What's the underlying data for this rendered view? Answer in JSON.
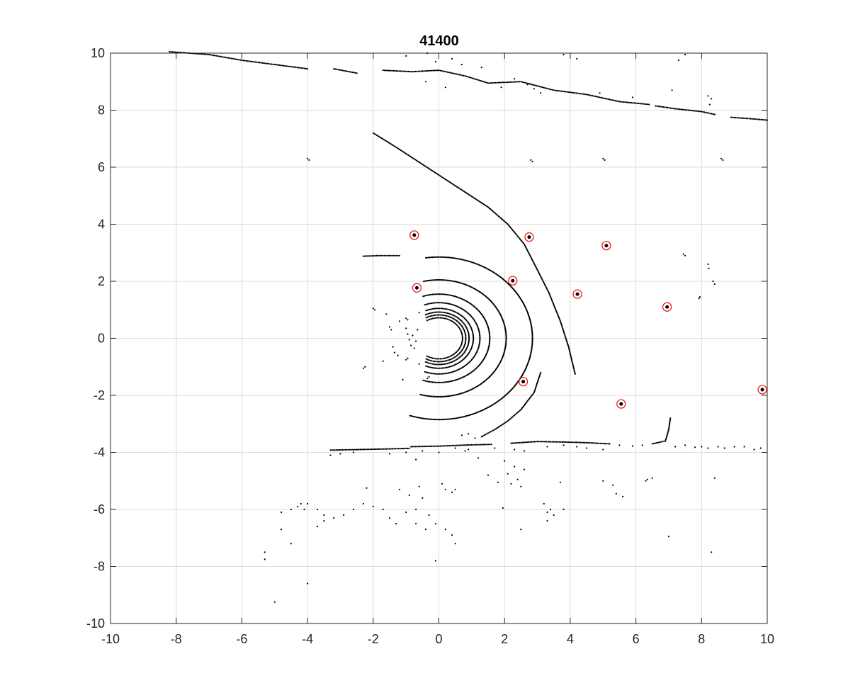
{
  "chart_data": {
    "type": "scatter",
    "title": "41400",
    "xlabel": "",
    "ylabel": "",
    "xlim": [
      -10,
      10
    ],
    "ylim": [
      -10,
      10
    ],
    "xticks": [
      -10,
      -8,
      -6,
      -4,
      -2,
      0,
      2,
      4,
      6,
      8,
      10
    ],
    "yticks": [
      -10,
      -8,
      -6,
      -4,
      -2,
      0,
      2,
      4,
      6,
      8,
      10
    ],
    "xtick_labels": [
      "-10",
      "-8",
      "-6",
      "-4",
      "-2",
      "0",
      "2",
      "4",
      "6",
      "8",
      "10"
    ],
    "ytick_labels": [
      "-10",
      "-8",
      "-6",
      "-4",
      "-2",
      "0",
      "2",
      "4",
      "6",
      "8",
      "10"
    ],
    "grid": true,
    "point_color": "#000000",
    "marker_color": "#ff0000",
    "arcs": [
      {
        "r": 0.72,
        "start": -120,
        "end": 120
      },
      {
        "r": 0.82,
        "start": -118,
        "end": 118
      },
      {
        "r": 0.92,
        "start": -116,
        "end": 116
      },
      {
        "r": 1.05,
        "start": -112,
        "end": 112
      },
      {
        "r": 1.25,
        "start": -110,
        "end": 110
      },
      {
        "r": 1.55,
        "start": -108,
        "end": 108
      },
      {
        "r": 2.05,
        "start": -106,
        "end": 103
      },
      {
        "r": 2.85,
        "start": -108,
        "end": 98
      }
    ],
    "polylines": [
      [
        [
          -2.0,
          7.2
        ],
        [
          -1.3,
          6.7
        ],
        [
          -0.5,
          6.1
        ],
        [
          0.3,
          5.5
        ],
        [
          0.9,
          5.05
        ],
        [
          1.5,
          4.6
        ],
        [
          2.1,
          4.0
        ],
        [
          2.6,
          3.3
        ],
        [
          3.0,
          2.4
        ],
        [
          3.35,
          1.6
        ],
        [
          3.7,
          0.6
        ],
        [
          3.95,
          -0.3
        ],
        [
          4.15,
          -1.25
        ]
      ],
      [
        [
          1.3,
          -3.45
        ],
        [
          1.7,
          -3.2
        ],
        [
          2.1,
          -2.9
        ],
        [
          2.5,
          -2.5
        ],
        [
          2.9,
          -1.9
        ],
        [
          3.1,
          -1.2
        ]
      ],
      [
        [
          -3.3,
          -3.92
        ],
        [
          -2.4,
          -3.9
        ],
        [
          -1.6,
          -3.88
        ],
        [
          -0.9,
          -3.86
        ]
      ],
      [
        [
          -0.85,
          -3.8
        ],
        [
          0.0,
          -3.78
        ],
        [
          0.9,
          -3.74
        ],
        [
          1.6,
          -3.72
        ]
      ],
      [
        [
          2.2,
          -3.68
        ],
        [
          3.0,
          -3.62
        ],
        [
          3.9,
          -3.64
        ],
        [
          4.5,
          -3.66
        ],
        [
          5.2,
          -3.7
        ]
      ],
      [
        [
          -2.3,
          2.88
        ],
        [
          -1.8,
          2.9
        ],
        [
          -1.2,
          2.9
        ]
      ],
      [
        [
          6.5,
          -3.7
        ],
        [
          6.9,
          -3.6
        ],
        [
          7.0,
          -3.2
        ],
        [
          7.05,
          -2.8
        ]
      ],
      [
        [
          -8.2,
          10.05
        ],
        [
          -7.0,
          9.95
        ],
        [
          -6.0,
          9.75
        ],
        [
          -5.0,
          9.6
        ],
        [
          -4.0,
          9.45
        ]
      ],
      [
        [
          -3.2,
          9.45
        ],
        [
          -2.5,
          9.3
        ]
      ],
      [
        [
          -1.7,
          9.4
        ],
        [
          -0.8,
          9.35
        ],
        [
          0.0,
          9.4
        ],
        [
          0.8,
          9.2
        ],
        [
          1.5,
          8.95
        ],
        [
          2.5,
          9.0
        ],
        [
          3.5,
          8.7
        ],
        [
          4.5,
          8.55
        ],
        [
          5.5,
          8.3
        ],
        [
          6.4,
          8.2
        ]
      ],
      [
        [
          6.6,
          8.15
        ],
        [
          7.2,
          8.05
        ],
        [
          8.0,
          7.95
        ],
        [
          8.4,
          7.85
        ]
      ],
      [
        [
          8.9,
          7.75
        ],
        [
          9.5,
          7.7
        ],
        [
          10.0,
          7.65
        ]
      ]
    ],
    "points": [
      [
        -4.0,
        6.3
      ],
      [
        -3.95,
        6.25
      ],
      [
        2.8,
        6.25
      ],
      [
        2.85,
        6.2
      ],
      [
        5.0,
        6.3
      ],
      [
        5.05,
        6.25
      ],
      [
        8.6,
        6.3
      ],
      [
        8.65,
        6.25
      ],
      [
        -0.35,
        10.0
      ],
      [
        0.4,
        9.8
      ],
      [
        0.7,
        9.6
      ],
      [
        1.3,
        9.5
      ],
      [
        -1.0,
        9.9
      ],
      [
        0.2,
        8.8
      ],
      [
        -0.4,
        9.0
      ],
      [
        -0.1,
        9.7
      ],
      [
        3.8,
        9.95
      ],
      [
        4.2,
        9.8
      ],
      [
        7.5,
        9.95
      ],
      [
        7.3,
        9.75
      ],
      [
        7.1,
        8.7
      ],
      [
        8.2,
        8.5
      ],
      [
        8.3,
        8.4
      ],
      [
        8.25,
        8.2
      ],
      [
        1.9,
        8.8
      ],
      [
        2.3,
        9.1
      ],
      [
        2.7,
        8.9
      ],
      [
        2.9,
        8.75
      ],
      [
        3.1,
        8.6
      ],
      [
        4.9,
        8.6
      ],
      [
        5.9,
        8.45
      ],
      [
        7.45,
        2.95
      ],
      [
        7.5,
        2.9
      ],
      [
        8.2,
        2.6
      ],
      [
        8.22,
        2.45
      ],
      [
        8.35,
        2.0
      ],
      [
        8.4,
        1.9
      ],
      [
        7.95,
        1.45
      ],
      [
        7.92,
        1.4
      ],
      [
        -2.0,
        1.05
      ],
      [
        -1.95,
        1.0
      ],
      [
        -2.3,
        -1.05
      ],
      [
        -2.25,
        -1.0
      ],
      [
        -1.5,
        0.4
      ],
      [
        -1.45,
        0.3
      ],
      [
        -1.4,
        -0.3
      ],
      [
        -1.35,
        -0.5
      ],
      [
        -1.2,
        0.6
      ],
      [
        -1.25,
        -0.6
      ],
      [
        -1.0,
        0.35
      ],
      [
        -0.95,
        0.15
      ],
      [
        -0.9,
        -0.05
      ],
      [
        -0.85,
        -0.25
      ],
      [
        -0.8,
        0.1
      ],
      [
        -0.7,
        -0.1
      ],
      [
        -0.65,
        0.3
      ],
      [
        -0.75,
        -0.35
      ],
      [
        -1.0,
        0.7
      ],
      [
        -0.95,
        0.65
      ],
      [
        -1.0,
        -0.75
      ],
      [
        -0.95,
        -0.7
      ],
      [
        -0.6,
        0.9
      ],
      [
        -0.6,
        -0.9
      ],
      [
        -0.3,
        -1.35
      ],
      [
        -0.35,
        -1.4
      ],
      [
        -1.1,
        -1.45
      ],
      [
        -1.7,
        -0.8
      ],
      [
        -1.6,
        0.85
      ],
      [
        -3.3,
        -4.1
      ],
      [
        -3.0,
        -4.05
      ],
      [
        -2.6,
        -4.0
      ],
      [
        -1.5,
        -4.05
      ],
      [
        -1.0,
        -4.0
      ],
      [
        -0.5,
        -3.95
      ],
      [
        -0.7,
        -4.25
      ],
      [
        0.0,
        -4.0
      ],
      [
        0.5,
        -3.85
      ],
      [
        0.8,
        -3.95
      ],
      [
        0.9,
        -3.9
      ],
      [
        0.7,
        -3.4
      ],
      [
        0.9,
        -3.35
      ],
      [
        1.1,
        -3.5
      ],
      [
        1.7,
        -3.85
      ],
      [
        2.3,
        -3.9
      ],
      [
        2.6,
        -3.95
      ],
      [
        3.3,
        -3.8
      ],
      [
        3.8,
        -3.75
      ],
      [
        4.2,
        -3.8
      ],
      [
        4.5,
        -3.85
      ],
      [
        5.0,
        -3.9
      ],
      [
        5.5,
        -3.75
      ],
      [
        5.9,
        -3.78
      ],
      [
        6.2,
        -3.75
      ],
      [
        7.2,
        -3.8
      ],
      [
        7.5,
        -3.75
      ],
      [
        7.8,
        -3.82
      ],
      [
        8.0,
        -3.8
      ],
      [
        8.2,
        -3.85
      ],
      [
        8.5,
        -3.8
      ],
      [
        8.7,
        -3.85
      ],
      [
        9.0,
        -3.8
      ],
      [
        9.3,
        -3.8
      ],
      [
        9.6,
        -3.9
      ],
      [
        9.8,
        -3.85
      ],
      [
        1.2,
        -4.2
      ],
      [
        2.0,
        -4.3
      ],
      [
        2.3,
        -4.5
      ],
      [
        2.6,
        -4.6
      ],
      [
        1.8,
        -5.05
      ],
      [
        2.2,
        -5.1
      ],
      [
        2.5,
        -5.2
      ],
      [
        2.4,
        -4.95
      ],
      [
        3.7,
        -5.05
      ],
      [
        5.0,
        -5.0
      ],
      [
        5.3,
        -5.15
      ],
      [
        5.4,
        -5.45
      ],
      [
        5.6,
        -5.55
      ],
      [
        6.3,
        -5.0
      ],
      [
        6.35,
        -4.95
      ],
      [
        6.5,
        -4.9
      ],
      [
        8.4,
        -4.9
      ],
      [
        7.0,
        -6.95
      ],
      [
        8.3,
        -7.5
      ],
      [
        3.2,
        -5.8
      ],
      [
        3.4,
        -6.0
      ],
      [
        3.5,
        -6.2
      ],
      [
        3.3,
        -6.4
      ],
      [
        3.8,
        -6.0
      ],
      [
        1.95,
        -5.95
      ],
      [
        -4.8,
        -6.1
      ],
      [
        -4.5,
        -6.0
      ],
      [
        -4.3,
        -5.9
      ],
      [
        -4.0,
        -5.8
      ],
      [
        -3.7,
        -6.0
      ],
      [
        -3.5,
        -6.2
      ],
      [
        -3.2,
        -6.3
      ],
      [
        -2.9,
        -6.2
      ],
      [
        -2.6,
        -6.0
      ],
      [
        -2.3,
        -5.8
      ],
      [
        -2.0,
        -5.9
      ],
      [
        -1.7,
        -6.0
      ],
      [
        -1.5,
        -6.3
      ],
      [
        -1.3,
        -6.5
      ],
      [
        -1.0,
        -6.1
      ],
      [
        -0.7,
        -6.0
      ],
      [
        -0.5,
        -5.6
      ],
      [
        -0.3,
        -6.2
      ],
      [
        -0.1,
        -6.5
      ],
      [
        0.2,
        -6.7
      ],
      [
        0.4,
        -6.9
      ],
      [
        0.5,
        -7.2
      ],
      [
        0.2,
        -5.3
      ],
      [
        0.4,
        -5.4
      ],
      [
        0.5,
        -5.3
      ],
      [
        0.1,
        -5.1
      ],
      [
        -0.6,
        -5.2
      ],
      [
        -0.9,
        -5.5
      ],
      [
        -1.2,
        -5.3
      ],
      [
        -2.2,
        -5.25
      ],
      [
        -4.2,
        -5.8
      ],
      [
        -4.1,
        -6.0
      ],
      [
        -4.8,
        -6.7
      ],
      [
        -4.5,
        -7.2
      ],
      [
        -5.3,
        -7.5
      ],
      [
        -5.3,
        -7.75
      ],
      [
        -4.0,
        -8.6
      ],
      [
        -5.0,
        -9.25
      ],
      [
        -0.1,
        -7.8
      ],
      [
        -0.7,
        -6.5
      ],
      [
        -0.4,
        -6.7
      ],
      [
        -3.5,
        -6.4
      ],
      [
        -3.7,
        -6.6
      ],
      [
        2.5,
        -6.7
      ],
      [
        3.3,
        -6.1
      ],
      [
        1.5,
        -4.8
      ],
      [
        2.1,
        -4.75
      ]
    ],
    "markers": [
      {
        "x": -0.75,
        "y": 3.62
      },
      {
        "x": 2.75,
        "y": 3.55
      },
      {
        "x": 5.1,
        "y": 3.25
      },
      {
        "x": 2.25,
        "y": 2.02
      },
      {
        "x": -0.67,
        "y": 1.77
      },
      {
        "x": 4.22,
        "y": 1.55
      },
      {
        "x": 6.95,
        "y": 1.1
      },
      {
        "x": 2.57,
        "y": -1.52
      },
      {
        "x": 5.55,
        "y": -2.3
      },
      {
        "x": 9.85,
        "y": -1.8
      }
    ]
  }
}
